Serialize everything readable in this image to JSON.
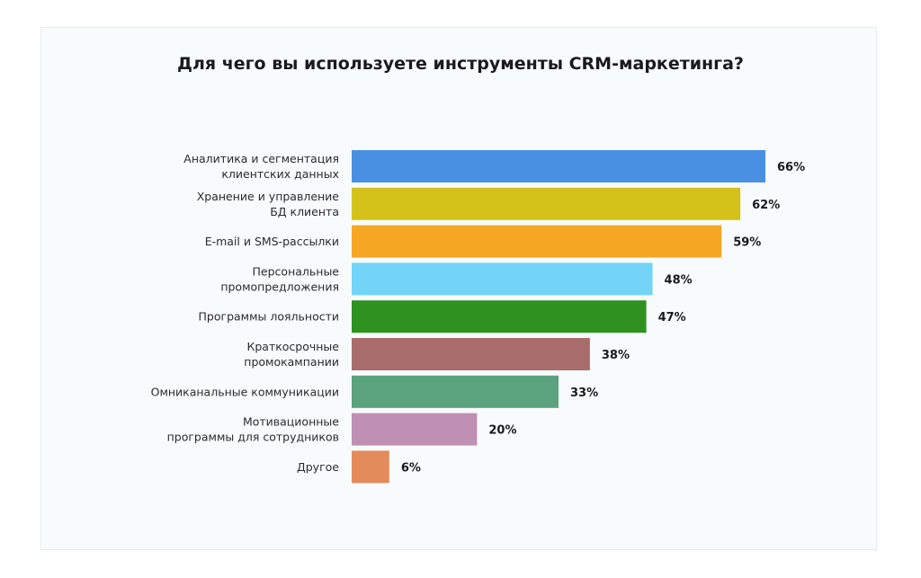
{
  "chart_data": {
    "type": "bar",
    "orientation": "horizontal",
    "title": "Для чего вы используете инструменты CRM-маркетинга?",
    "value_suffix": "%",
    "categories": [
      [
        "Аналитика и сегментация",
        "клиентских данных"
      ],
      [
        "Хранение и управление",
        "БД клиента"
      ],
      [
        "E-mail и SMS-рассылки"
      ],
      [
        "Персональные",
        "промопредложения"
      ],
      [
        "Программы лояльности"
      ],
      [
        "Краткосрочные",
        "промокампании"
      ],
      [
        "Омниканальные коммуникации"
      ],
      [
        "Мотивационные",
        "программы для сотрудников"
      ],
      [
        "Другое"
      ]
    ],
    "values": [
      66,
      62,
      59,
      48,
      47,
      38,
      33,
      20,
      6
    ],
    "colors": [
      "#4a90e2",
      "#d4c21a",
      "#f5a623",
      "#74d4f8",
      "#2e9120",
      "#a86d6b",
      "#5ba27e",
      "#c08fb4",
      "#e38b5a"
    ],
    "grid": false,
    "legend": "none"
  }
}
